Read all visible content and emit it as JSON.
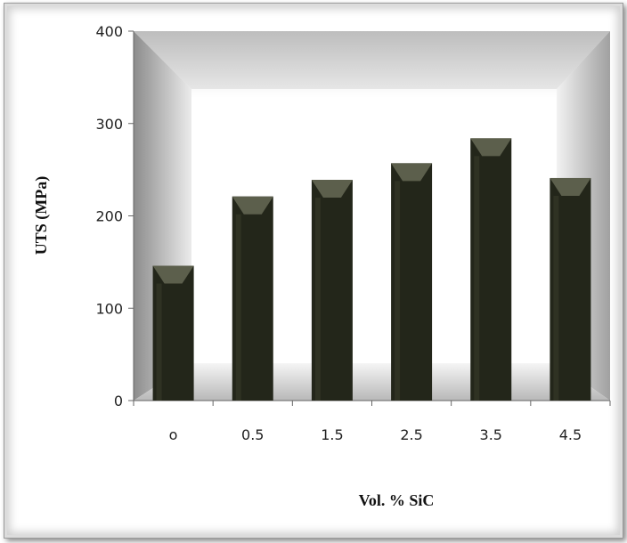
{
  "chart_data": {
    "type": "bar",
    "categories": [
      "o",
      "0.5",
      "1.5",
      "2.5",
      "3.5",
      "4.5"
    ],
    "values": [
      146,
      221,
      239,
      257,
      284,
      241
    ],
    "title": "",
    "xlabel": "Vol. % SiC",
    "ylabel": "UTS (MPa)",
    "ylim": [
      0,
      400
    ],
    "yticks": [
      "0",
      "100",
      "200",
      "300",
      "400"
    ],
    "grid": false,
    "legend": "none",
    "colors": {
      "bar": "#23261a",
      "bar_top": "#5c5f4c",
      "bar_shine": "#3a3d2c",
      "background_gradient": [
        "#ffffff",
        "#dedede",
        "#b8b8b8"
      ]
    }
  }
}
